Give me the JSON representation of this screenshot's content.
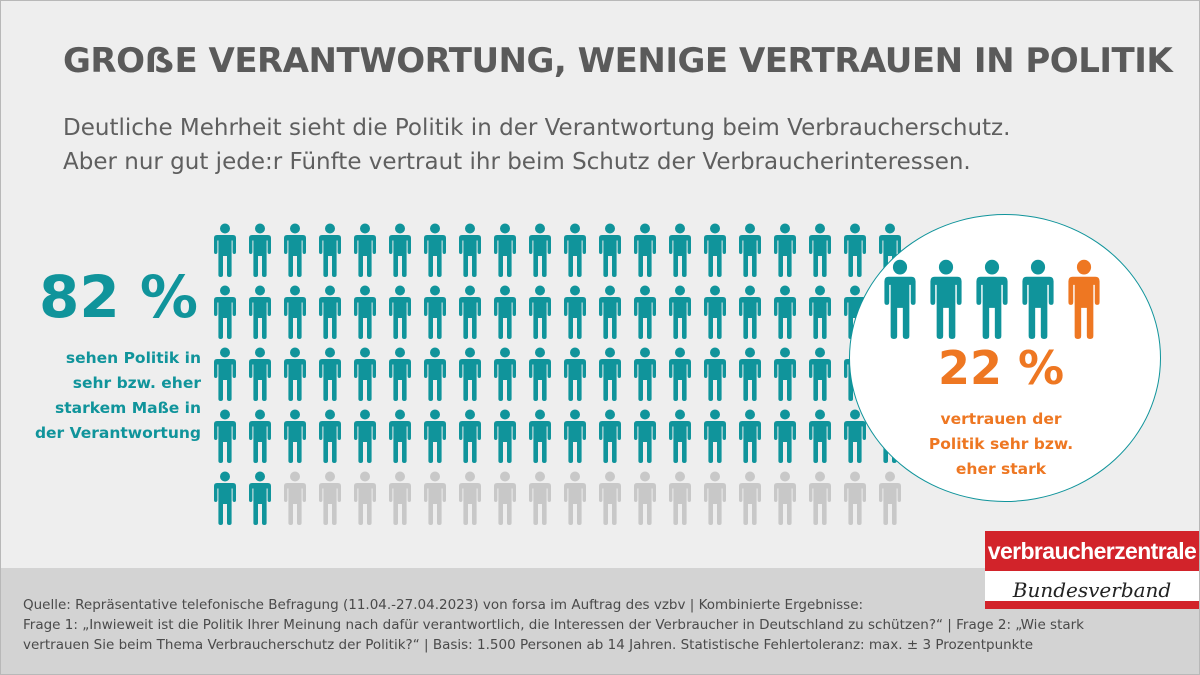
{
  "title": "GROẞE VERANTWORTUNG, WENIGE VERTRAUEN IN POLITIK",
  "subtitle": [
    "Deutliche Mehrheit sieht die Politik in der Verantwortung beim Verbraucherschutz.",
    "Aber nur gut jede:r Fünfte vertraut ihr beim Schutz der Verbraucherinteressen."
  ],
  "colors": {
    "teal": "#10949b",
    "orange": "#ee7722",
    "gray": "#c8c8c8",
    "title": "#5a5a5a",
    "brand_red": "#d2232a"
  },
  "chart_data": [
    {
      "type": "pictogram",
      "value_percent": 82,
      "value_label": "82 %",
      "grid": {
        "rows": 5,
        "cols": 20,
        "total_icons": 100,
        "highlighted_icons": 82
      },
      "label_lines": [
        "sehen Politik in",
        "sehr bzw. eher",
        "starkem Maße in",
        "der Verantwortung"
      ]
    },
    {
      "type": "pictogram",
      "value_percent": 22,
      "value_label": "22 %",
      "grid": {
        "rows": 1,
        "cols": 5,
        "total_icons": 5,
        "highlighted_icons": 1
      },
      "label_lines": [
        "vertrauen der",
        "Politik sehr bzw.",
        "eher stark"
      ]
    }
  ],
  "footer": {
    "lines": [
      "Quelle: Repräsentative telefonische Befragung (11.04.-27.04.2023) von forsa im Auftrag des vzbv | Kombinierte Ergebnisse:",
      "Frage 1: „Inwieweit ist die Politik Ihrer Meinung nach dafür verantwortlich, die Interessen der Verbraucher in Deutschland zu schützen?“ | Frage 2: „Wie stark",
      "vertrauen Sie beim Thema Verbraucherschutz der Politik?“ | Basis: 1.500 Personen ab 14 Jahren. Statistische Fehlertoleranz: max. ± 3 Prozentpunkte"
    ]
  },
  "logo": {
    "top": "verbraucherzentrale",
    "bottom": "Bundesverband"
  }
}
